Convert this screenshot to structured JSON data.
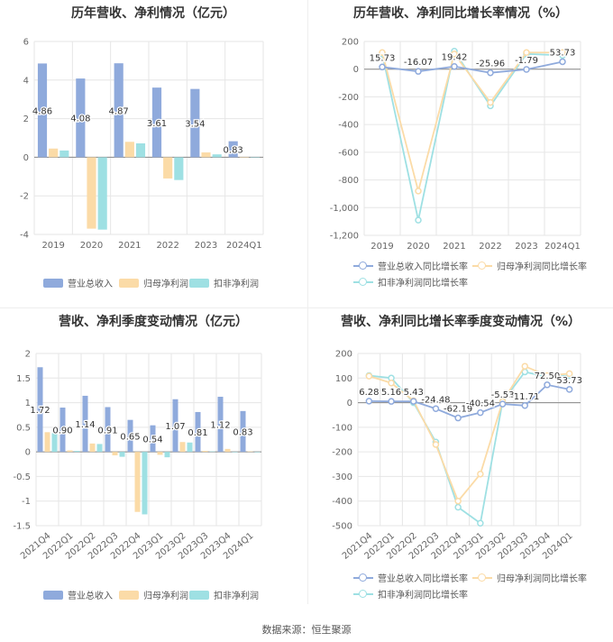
{
  "footer": "数据来源：恒生聚源",
  "colors": {
    "s1": "#8faadc",
    "s2": "#fbdba7",
    "s3": "#9ee0e3",
    "grid": "#e6e6e6",
    "axis": "#888",
    "text": "#666"
  },
  "chart_data": [
    {
      "id": "c1",
      "type": "bar",
      "title": "历年营收、净利情况（亿元）",
      "categories": [
        "2019",
        "2020",
        "2021",
        "2022",
        "2023",
        "2024Q1"
      ],
      "ylim": [
        -4,
        6
      ],
      "yticks": [
        -4,
        -2,
        0,
        2,
        4,
        6
      ],
      "series": [
        {
          "name": "营业总收入",
          "values": [
            4.86,
            4.08,
            4.87,
            3.61,
            3.54,
            0.83
          ],
          "labels": [
            "4.86",
            "4.08",
            "4.87",
            "3.61",
            "3.54",
            "0.83"
          ]
        },
        {
          "name": "归母净利润",
          "values": [
            0.45,
            -3.7,
            0.8,
            -1.1,
            0.25,
            0.02
          ]
        },
        {
          "name": "扣非净利润",
          "values": [
            0.35,
            -3.75,
            0.72,
            -1.18,
            0.15,
            0.0
          ]
        }
      ]
    },
    {
      "id": "c2",
      "type": "line",
      "title": "历年营收、净利同比增长率情况（%）",
      "categories": [
        "2019",
        "2020",
        "2021",
        "2022",
        "2023",
        "2024Q1"
      ],
      "ylim": [
        -1200,
        200
      ],
      "yticks": [
        -1200,
        -1000,
        -800,
        -600,
        -400,
        -200,
        0,
        200
      ],
      "ytick_labels": [
        "-1,200",
        "-1,000",
        "-800",
        "-600",
        "-400",
        "-200",
        "0",
        "200"
      ],
      "series": [
        {
          "name": "营业总收入同比增长率",
          "values": [
            15.73,
            -16.07,
            19.42,
            -25.96,
            -1.79,
            53.73
          ],
          "labels": [
            "15.73",
            "-16.07",
            "19.42",
            "-25.96",
            "-1.79",
            "53.73"
          ]
        },
        {
          "name": "归母净利润同比增长率",
          "values": [
            120,
            -880,
            110,
            -240,
            120,
            120
          ]
        },
        {
          "name": "扣非净利润同比增长率",
          "values": [
            110,
            -1090,
            130,
            -265,
            110,
            100
          ]
        }
      ]
    },
    {
      "id": "c3",
      "type": "bar",
      "title": "营收、净利季度变动情况（亿元）",
      "categories": [
        "2021Q4",
        "2022Q1",
        "2022Q2",
        "2022Q3",
        "2022Q4",
        "2023Q1",
        "2023Q2",
        "2023Q3",
        "2023Q4",
        "2024Q1"
      ],
      "ylim": [
        -1.5,
        2
      ],
      "yticks": [
        -1.5,
        -1,
        -0.5,
        0,
        0.5,
        1,
        1.5,
        2
      ],
      "ytick_labels": [
        "-1.5",
        "-1",
        "-0.5",
        "0",
        "0.5",
        "1",
        "1.5",
        "2"
      ],
      "series": [
        {
          "name": "营业总收入",
          "values": [
            1.72,
            0.9,
            1.14,
            0.91,
            0.65,
            0.54,
            1.07,
            0.81,
            1.12,
            0.83
          ],
          "labels": [
            "1.72",
            "0.90",
            "1.14",
            "0.91",
            "0.65",
            "0.54",
            "1.07",
            "0.81",
            "1.12",
            "0.83"
          ]
        },
        {
          "name": "归母净利润",
          "values": [
            0.4,
            0.03,
            0.17,
            -0.07,
            -1.22,
            -0.06,
            0.2,
            0.02,
            0.06,
            0.01
          ]
        },
        {
          "name": "扣非净利润",
          "values": [
            0.38,
            0.02,
            0.16,
            -0.1,
            -1.27,
            -0.11,
            0.19,
            0.01,
            0.0,
            0.0
          ]
        }
      ]
    },
    {
      "id": "c4",
      "type": "line",
      "title": "营收、净利同比增长率季度变动情况（%）",
      "categories": [
        "2021Q4",
        "2022Q1",
        "2022Q2",
        "2022Q3",
        "2022Q4",
        "2023Q1",
        "2023Q2",
        "2023Q3",
        "2023Q4",
        "2024Q1"
      ],
      "ylim": [
        -500,
        200
      ],
      "yticks": [
        -500,
        -400,
        -300,
        -200,
        -100,
        0,
        100,
        200
      ],
      "ytick_labels": [
        "-500",
        "-400",
        "-300",
        "-200",
        "-100",
        "0",
        "100",
        "200"
      ],
      "series": [
        {
          "name": "营业总收入同比增长率",
          "values": [
            6.28,
            5.16,
            5.43,
            -24.48,
            -62.19,
            -40.54,
            -5.53,
            -11.71,
            72.5,
            53.73
          ],
          "labels": [
            "6.28",
            "5.16",
            "5.43",
            "-24.48",
            "-62.19",
            "-40.54",
            "-5.53",
            "-11.71",
            "72.50",
            "53.73"
          ]
        },
        {
          "name": "归母净利润同比增长率",
          "values": [
            108,
            80,
            8,
            -170,
            -400,
            -290,
            5,
            148,
            110,
            118
          ]
        },
        {
          "name": "扣非净利润同比增长率",
          "values": [
            110,
            100,
            0,
            -160,
            -425,
            -490,
            5,
            125,
            105,
            110
          ]
        }
      ]
    }
  ]
}
